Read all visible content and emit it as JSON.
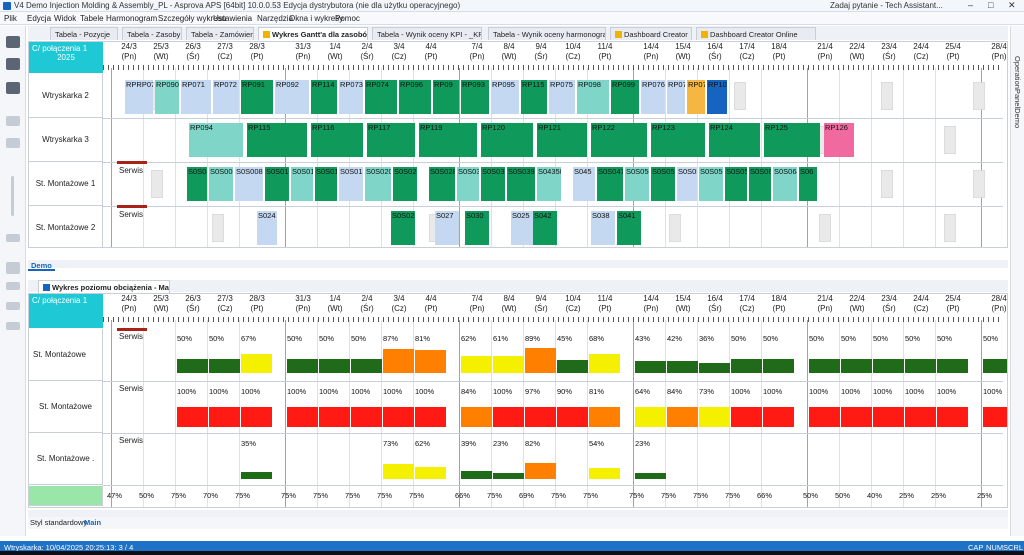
{
  "window": {
    "title": "V4 Demo Injection Molding & Assembly_PL - Asprova APS [64bit] 10.0.0.53 Edycja dystrybutora (nie dla użytku operacyjnego)",
    "help_search": "Zadaj pytanie - Tech Assistant..."
  },
  "menu": [
    "Plik",
    "Edycja",
    "Widok",
    "Tabele",
    "Harmonogram",
    "Szczegóły wykresu",
    "Ustawienia",
    "Narzędzia",
    "Okna i wykresy",
    "Pomoc"
  ],
  "tabs": [
    {
      "label": "Tabela - Pozycje",
      "active": false,
      "icon": false
    },
    {
      "label": "Tabela - Zasoby",
      "active": false,
      "icon": false
    },
    {
      "label": "Tabela - Zamówienie",
      "active": false,
      "icon": false
    },
    {
      "label": "Wykres Gantt'a dla zasobów",
      "active": true,
      "icon": true
    },
    {
      "label": "Tabela - Wynik oceny KPI - _KPI",
      "active": false,
      "icon": false
    },
    {
      "label": "Tabela - Wynik oceny harmonogra...",
      "active": false,
      "icon": false
    },
    {
      "label": "Dashboard Creator",
      "active": false,
      "icon": true
    },
    {
      "label": "Dashboard Creator Online",
      "active": false,
      "icon": true
    }
  ],
  "right_panel_label": "OperationPanelDemo",
  "dates": [
    {
      "d": "24/3",
      "w": "(Pn)"
    },
    {
      "d": "25/3",
      "w": "(Wt)"
    },
    {
      "d": "26/3",
      "w": "(Śr)"
    },
    {
      "d": "27/3",
      "w": "(Cz)"
    },
    {
      "d": "28/3",
      "w": "(Pt)"
    },
    {
      "d": "31/3",
      "w": "(Pn)"
    },
    {
      "d": "1/4",
      "w": "(Wt)"
    },
    {
      "d": "2/4",
      "w": "(Śr)"
    },
    {
      "d": "3/4",
      "w": "(Cz)"
    },
    {
      "d": "4/4",
      "w": "(Pt)"
    },
    {
      "d": "7/4",
      "w": "(Pn)"
    },
    {
      "d": "8/4",
      "w": "(Wt)"
    },
    {
      "d": "9/4",
      "w": "(Śr)"
    },
    {
      "d": "10/4",
      "w": "(Cz)"
    },
    {
      "d": "11/4",
      "w": "(Pt)"
    },
    {
      "d": "14/4",
      "w": "(Pn)"
    },
    {
      "d": "15/4",
      "w": "(Wt)"
    },
    {
      "d": "16/4",
      "w": "(Śr)"
    },
    {
      "d": "17/4",
      "w": "(Cz)"
    },
    {
      "d": "18/4",
      "w": "(Pt)"
    },
    {
      "d": "21/4",
      "w": "(Pn)"
    },
    {
      "d": "22/4",
      "w": "(Wt)"
    },
    {
      "d": "23/4",
      "w": "(Śr)"
    },
    {
      "d": "24/4",
      "w": "(Cz)"
    },
    {
      "d": "25/4",
      "w": "(Pt)"
    },
    {
      "d": "28/4",
      "w": "(Pn)"
    }
  ],
  "gantt": {
    "corner_line1": "C/ połączenia 1",
    "corner_line2": "2025",
    "rows": [
      "Wtryskarka 2",
      "Wtryskarka 3",
      "St. Montażowe 1",
      "St. Montażowe 2"
    ],
    "serwis_label": "Serwis",
    "row1_labels": [
      "RPRP070",
      "RP090",
      "RP071",
      "RP072",
      "RP091",
      "RP092",
      "RP114",
      "RP073",
      "RP074",
      "RP096",
      "RP09",
      "RP093",
      "RP095",
      "RP115",
      "RP075",
      "RP098",
      "RP099",
      "RP076",
      "RP077",
      "RP078",
      "RP100"
    ],
    "row2_labels": [
      "RP094",
      "RP115",
      "RP116",
      "RP117",
      "RP119",
      "RP120",
      "RP121",
      "RP122",
      "RP123",
      "RP124",
      "RP125",
      "RP126"
    ],
    "row3_labels": [
      "S0S003",
      "S0S005",
      "S0S008",
      "S0S010",
      "S0S012",
      "S0S015",
      "S0S017",
      "S0S020",
      "S0S022",
      "S0S028",
      "S0S033",
      "S0S036",
      "S0S039",
      "S04350",
      "S045",
      "S0S047",
      "S0S050",
      "S0S052",
      "S0S054",
      "S0S057",
      "S0S059",
      "S0S062",
      "S0S064",
      "S06"
    ],
    "row4_labels": [
      "S024",
      "S0S026",
      "S027",
      "S030",
      "S025",
      "S042",
      "S038",
      "S041"
    ],
    "tab_label": "Demo"
  },
  "load_chart": {
    "tab_label": "Wykres poziomu obciążenia - Main",
    "corner_line1": "C/ połączenia 1",
    "rows": [
      "St. Montażowe",
      "St. Montażowe",
      "St. Montażowe ."
    ],
    "serwis_label": "Serwis",
    "row1": [
      "50%",
      "50%",
      "67%",
      "50%",
      "50%",
      "50%",
      "87%",
      "81%",
      "62%",
      "61%",
      "89%",
      "45%",
      "68%",
      "43%",
      "42%",
      "36%",
      "50%",
      "50%",
      "50%",
      "50%",
      "50%",
      "50%",
      "50%",
      "50%"
    ],
    "row2": [
      "100%",
      "100%",
      "100%",
      "100%",
      "100%",
      "100%",
      "100%",
      "100%",
      "84%",
      "100%",
      "97%",
      "90%",
      "81%",
      "64%",
      "84%",
      "73%",
      "100%",
      "100%",
      "100%",
      "100%",
      "100%",
      "100%",
      "100%",
      "100%"
    ],
    "row3": [
      "35%",
      "73%",
      "62%",
      "39%",
      "23%",
      "82%",
      "54%",
      "23%"
    ],
    "bottom": [
      "47%",
      "50%",
      "75%",
      "70%",
      "75%",
      "75%",
      "75%",
      "75%",
      "75%",
      "75%",
      "66%",
      "75%",
      "69%",
      "75%",
      "75%",
      "75%",
      "75%",
      "75%",
      "75%",
      "66%",
      "50%",
      "50%",
      "40%",
      "25%",
      "25%",
      "25%"
    ],
    "colors": {
      "green": "#1f6b1a",
      "yellow": "#f5f000",
      "orange": "#ff8000",
      "red": "#ff1a14"
    }
  },
  "style_tabs": [
    "Styl standardowy",
    "Main"
  ],
  "status": {
    "left": "Wtryskarka: 10/04/2025 20:25:13: 3 / 4",
    "right": [
      "CAP",
      "NUM",
      "SCRL"
    ]
  }
}
